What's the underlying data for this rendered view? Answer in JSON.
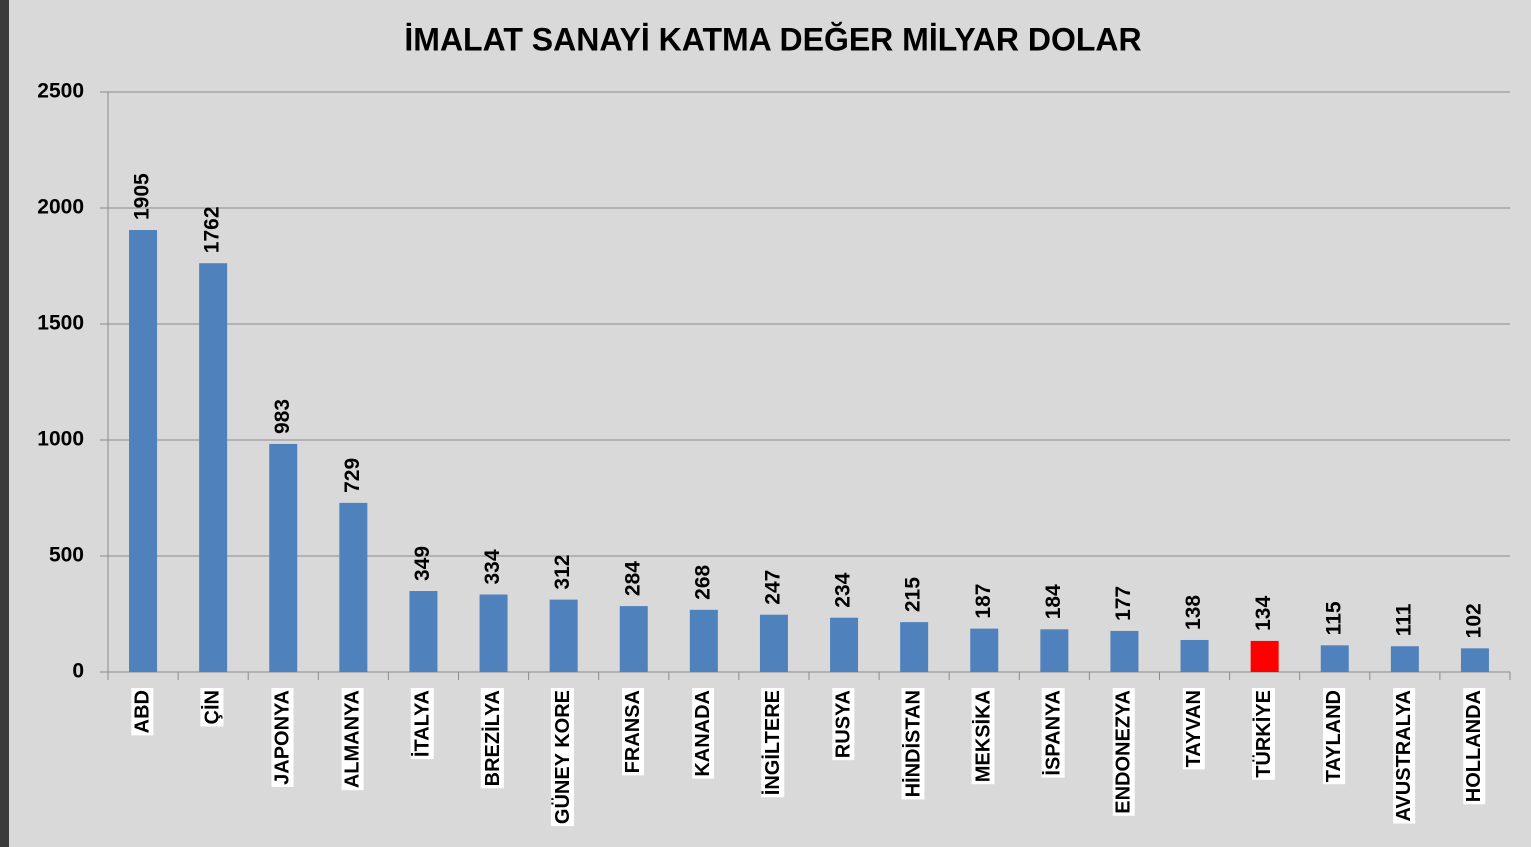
{
  "chart_data": {
    "type": "bar",
    "title": "İMALAT SANAYİ KATMA DEĞER MİLYAR DOLAR",
    "categories": [
      "ABD",
      "ÇİN",
      "JAPONYA",
      "ALMANYA",
      "İTALYA",
      "BREZİLYA",
      "GÜNEY KORE",
      "FRANSA",
      "KANADA",
      "İNGİLTERE",
      "RUSYA",
      "HİNDİSTAN",
      "MEKSİKA",
      "İSPANYA",
      "ENDONEZYA",
      "TAYVAN",
      "TÜRKİYE",
      "TAYLAND",
      "AVUSTRALYA",
      "HOLLANDA"
    ],
    "values": [
      1905,
      1762,
      983,
      729,
      349,
      334,
      312,
      284,
      268,
      247,
      234,
      215,
      187,
      184,
      177,
      138,
      134,
      115,
      111,
      102
    ],
    "colors": [
      "#4f81bd",
      "#4f81bd",
      "#4f81bd",
      "#4f81bd",
      "#4f81bd",
      "#4f81bd",
      "#4f81bd",
      "#4f81bd",
      "#4f81bd",
      "#4f81bd",
      "#4f81bd",
      "#4f81bd",
      "#4f81bd",
      "#4f81bd",
      "#4f81bd",
      "#4f81bd",
      "#ff0000",
      "#4f81bd",
      "#4f81bd",
      "#4f81bd"
    ],
    "ylim": [
      0,
      2500
    ],
    "yticks": [
      0,
      500,
      1000,
      1500,
      2000,
      2500
    ],
    "grid": true
  }
}
